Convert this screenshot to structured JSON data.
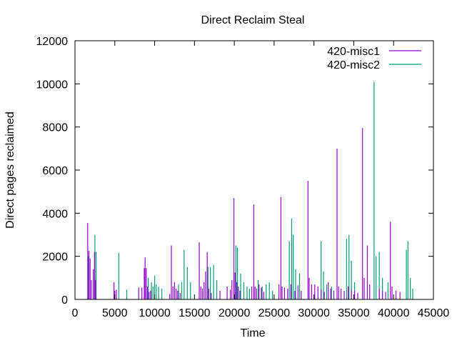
{
  "chart_data": {
    "type": "bar",
    "title": "Direct Reclaim Steal",
    "xlabel": "Time",
    "ylabel": "Direct pages reclaimed",
    "xlim": [
      0,
      45000
    ],
    "ylim": [
      0,
      12000
    ],
    "xticks": [
      "0",
      "5000",
      "10000",
      "15000",
      "20000",
      "25000",
      "30000",
      "35000",
      "40000",
      "45000"
    ],
    "yticks": [
      "0",
      "2000",
      "4000",
      "6000",
      "8000",
      "10000",
      "12000"
    ],
    "legend_position": "top-right",
    "grid": false,
    "series": [
      {
        "name": "420-misc1",
        "color": "#9400d3",
        "points": [
          [
            1600,
            3550
          ],
          [
            1750,
            2250
          ],
          [
            1900,
            1900
          ],
          [
            2050,
            900
          ],
          [
            2300,
            1400
          ],
          [
            2450,
            2200
          ],
          [
            2600,
            900
          ],
          [
            4900,
            800
          ],
          [
            5000,
            400
          ],
          [
            5200,
            450
          ],
          [
            8000,
            550
          ],
          [
            8400,
            550
          ],
          [
            8700,
            1450
          ],
          [
            8800,
            1950
          ],
          [
            8950,
            1450
          ],
          [
            9100,
            600
          ],
          [
            9300,
            350
          ],
          [
            9500,
            400
          ],
          [
            11900,
            250
          ],
          [
            12100,
            2500
          ],
          [
            12300,
            600
          ],
          [
            12500,
            800
          ],
          [
            12700,
            500
          ],
          [
            12900,
            400
          ],
          [
            13200,
            300
          ],
          [
            15600,
            2650
          ],
          [
            15800,
            600
          ],
          [
            16000,
            500
          ],
          [
            16200,
            800
          ],
          [
            16400,
            1300
          ],
          [
            16600,
            2200
          ],
          [
            16800,
            500
          ],
          [
            17100,
            300
          ],
          [
            18200,
            400
          ],
          [
            19100,
            600
          ],
          [
            19500,
            450
          ],
          [
            19700,
            900
          ],
          [
            19950,
            4700
          ],
          [
            20100,
            1250
          ],
          [
            20300,
            800
          ],
          [
            20500,
            600
          ],
          [
            20700,
            400
          ],
          [
            22200,
            600
          ],
          [
            22450,
            4400
          ],
          [
            22600,
            600
          ],
          [
            22800,
            500
          ],
          [
            23100,
            700
          ],
          [
            23400,
            550
          ],
          [
            23700,
            350
          ],
          [
            25600,
            700
          ],
          [
            25850,
            4750
          ],
          [
            26000,
            600
          ],
          [
            26300,
            550
          ],
          [
            26700,
            500
          ],
          [
            27100,
            700
          ],
          [
            27600,
            400
          ],
          [
            28000,
            650
          ],
          [
            28400,
            400
          ],
          [
            29250,
            5500
          ],
          [
            29400,
            1000
          ],
          [
            29700,
            700
          ],
          [
            30100,
            700
          ],
          [
            30500,
            600
          ],
          [
            30900,
            450
          ],
          [
            31300,
            350
          ],
          [
            31800,
            800
          ],
          [
            32100,
            500
          ],
          [
            32500,
            400
          ],
          [
            32900,
            7000
          ],
          [
            33100,
            600
          ],
          [
            33400,
            500
          ],
          [
            33800,
            400
          ],
          [
            34300,
            600
          ],
          [
            34700,
            450
          ],
          [
            35100,
            400
          ],
          [
            35500,
            300
          ],
          [
            36100,
            7950
          ],
          [
            36300,
            1000
          ],
          [
            36700,
            2500
          ],
          [
            37000,
            700
          ],
          [
            38200,
            500
          ],
          [
            38600,
            400
          ],
          [
            39000,
            350
          ],
          [
            39600,
            3600
          ],
          [
            39800,
            600
          ],
          [
            40300,
            400
          ],
          [
            40800,
            350
          ]
        ]
      },
      {
        "name": "420-misc2",
        "color": "#009e73",
        "points": [
          [
            1700,
            2000
          ],
          [
            2500,
            3000
          ],
          [
            2650,
            2200
          ],
          [
            5500,
            2150
          ],
          [
            6500,
            450
          ],
          [
            9200,
            1000
          ],
          [
            9600,
            800
          ],
          [
            9800,
            600
          ],
          [
            10000,
            1100
          ],
          [
            10200,
            700
          ],
          [
            10500,
            600
          ],
          [
            10900,
            500
          ],
          [
            13000,
            700
          ],
          [
            13400,
            800
          ],
          [
            13700,
            2300
          ],
          [
            14100,
            1500
          ],
          [
            14500,
            800
          ],
          [
            16700,
            1500
          ],
          [
            17000,
            1500
          ],
          [
            17400,
            1600
          ],
          [
            17800,
            900
          ],
          [
            20200,
            2500
          ],
          [
            20400,
            2400
          ],
          [
            20800,
            1200
          ],
          [
            21200,
            800
          ],
          [
            21600,
            600
          ],
          [
            21900,
            500
          ],
          [
            23000,
            900
          ],
          [
            23500,
            600
          ],
          [
            24000,
            700
          ],
          [
            24400,
            800
          ],
          [
            24800,
            400
          ],
          [
            26900,
            2700
          ],
          [
            27200,
            3750
          ],
          [
            27400,
            3000
          ],
          [
            27700,
            1400
          ],
          [
            28200,
            1200
          ],
          [
            30900,
            2700
          ],
          [
            31200,
            1300
          ],
          [
            31600,
            700
          ],
          [
            32200,
            600
          ],
          [
            34100,
            2800
          ],
          [
            34400,
            3000
          ],
          [
            34700,
            1800
          ],
          [
            35100,
            800
          ],
          [
            37550,
            10100
          ],
          [
            37800,
            2000
          ],
          [
            38200,
            2200
          ],
          [
            38600,
            1000
          ],
          [
            39300,
            800
          ],
          [
            41600,
            2300
          ],
          [
            41800,
            2700
          ],
          [
            42100,
            1000
          ],
          [
            42400,
            500
          ]
        ]
      }
    ]
  }
}
